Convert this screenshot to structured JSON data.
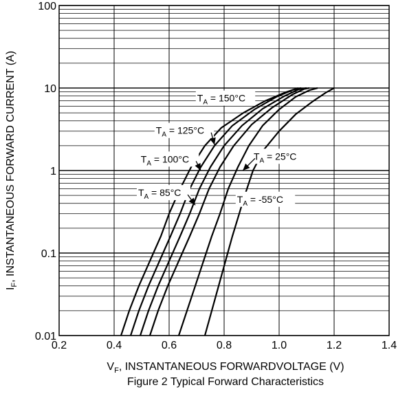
{
  "chart_data": {
    "type": "line",
    "y_scale": "log",
    "grid": true,
    "xlim": [
      0.2,
      1.4
    ],
    "ylim": [
      0.01,
      100
    ],
    "x_ticks": [
      {
        "v": 0.2,
        "label": "0.2"
      },
      {
        "v": 0.4,
        "label": "0.4"
      },
      {
        "v": 0.6,
        "label": "0.6"
      },
      {
        "v": 0.8,
        "label": "0.8"
      },
      {
        "v": 1.0,
        "label": "1.0"
      },
      {
        "v": 1.2,
        "label": "1.2"
      },
      {
        "v": 1.4,
        "label": "1.4"
      }
    ],
    "y_ticks": [
      {
        "v": 0.01,
        "label": "0.01"
      },
      {
        "v": 0.1,
        "label": "0.1"
      },
      {
        "v": 1,
        "label": "1"
      },
      {
        "v": 10,
        "label": "10"
      },
      {
        "v": 100,
        "label": "100"
      }
    ],
    "xlabel": {
      "pre": "V",
      "sub": "F",
      "post": ", INSTANTANEOUS FORWARDVOLTAGE (V)"
    },
    "ylabel": {
      "pre": "I",
      "sub": "F",
      "post": ", INSTANTANEOUS FORWARD CURRENT (A)"
    },
    "caption": "Figure 2 Typical Forward Characteristics",
    "series": [
      {
        "label_pre": "T",
        "label_sub": "A",
        "label_post": " = 150°C",
        "label_at": [
          0.805,
          7.4
        ],
        "arrow_to": [
          0.78,
          2.8
        ],
        "arrow": false,
        "points": [
          [
            0.425,
            0.01
          ],
          [
            0.455,
            0.02
          ],
          [
            0.49,
            0.04
          ],
          [
            0.53,
            0.08
          ],
          [
            0.57,
            0.16
          ],
          [
            0.6,
            0.3
          ],
          [
            0.64,
            0.6
          ],
          [
            0.68,
            1.1
          ],
          [
            0.73,
            2.0
          ],
          [
            0.79,
            3.3
          ],
          [
            0.87,
            5.0
          ],
          [
            0.95,
            7.0
          ],
          [
            1.02,
            8.8
          ],
          [
            1.07,
            10
          ]
        ]
      },
      {
        "label_pre": "T",
        "label_sub": "A",
        "label_post": " = 125°C",
        "label_at": [
          0.655,
          3.0
        ],
        "arrow_to": [
          0.765,
          2.05
        ],
        "arrow": true,
        "points": [
          [
            0.46,
            0.01
          ],
          [
            0.49,
            0.02
          ],
          [
            0.525,
            0.04
          ],
          [
            0.565,
            0.08
          ],
          [
            0.605,
            0.16
          ],
          [
            0.64,
            0.3
          ],
          [
            0.675,
            0.6
          ],
          [
            0.715,
            1.1
          ],
          [
            0.765,
            2.0
          ],
          [
            0.83,
            3.5
          ],
          [
            0.91,
            5.5
          ],
          [
            0.99,
            7.8
          ],
          [
            1.05,
            9.5
          ],
          [
            1.08,
            10
          ]
        ]
      },
      {
        "label_pre": "T",
        "label_sub": "A",
        "label_post": " = 100°C",
        "label_at": [
          0.6,
          1.35
        ],
        "arrow_to": [
          0.715,
          1.0
        ],
        "arrow": true,
        "points": [
          [
            0.495,
            0.01
          ],
          [
            0.525,
            0.02
          ],
          [
            0.56,
            0.04
          ],
          [
            0.6,
            0.08
          ],
          [
            0.64,
            0.16
          ],
          [
            0.675,
            0.3
          ],
          [
            0.71,
            0.6
          ],
          [
            0.75,
            1.1
          ],
          [
            0.8,
            2.0
          ],
          [
            0.865,
            3.5
          ],
          [
            0.94,
            5.6
          ],
          [
            1.02,
            8.0
          ],
          [
            1.07,
            9.6
          ],
          [
            1.1,
            10
          ]
        ]
      },
      {
        "label_pre": "T",
        "label_sub": "A",
        "label_post": " = 85°C",
        "label_at": [
          0.58,
          0.53
        ],
        "arrow_to": [
          0.695,
          0.38
        ],
        "arrow": true,
        "points": [
          [
            0.53,
            0.01
          ],
          [
            0.56,
            0.02
          ],
          [
            0.595,
            0.04
          ],
          [
            0.635,
            0.08
          ],
          [
            0.675,
            0.16
          ],
          [
            0.71,
            0.3
          ],
          [
            0.745,
            0.6
          ],
          [
            0.785,
            1.1
          ],
          [
            0.835,
            2.0
          ],
          [
            0.9,
            3.6
          ],
          [
            0.975,
            5.8
          ],
          [
            1.05,
            8.4
          ],
          [
            1.09,
            9.7
          ],
          [
            1.11,
            10
          ]
        ]
      },
      {
        "label_pre": "T",
        "label_sub": "A",
        "label_post": " = 25°C",
        "label_at": [
          1.0,
          1.46
        ],
        "arrow_to": [
          0.868,
          1.0
        ],
        "arrow": true,
        "points": [
          [
            0.635,
            0.01
          ],
          [
            0.665,
            0.02
          ],
          [
            0.695,
            0.04
          ],
          [
            0.725,
            0.08
          ],
          [
            0.755,
            0.16
          ],
          [
            0.785,
            0.3
          ],
          [
            0.815,
            0.6
          ],
          [
            0.85,
            1.1
          ],
          [
            0.89,
            2.0
          ],
          [
            0.94,
            3.5
          ],
          [
            1.0,
            5.5
          ],
          [
            1.06,
            7.8
          ],
          [
            1.11,
            9.4
          ],
          [
            1.14,
            10
          ]
        ]
      },
      {
        "label_pre": "T",
        "label_sub": "A",
        "label_post": " = -55°C",
        "label_at": [
          0.95,
          0.44
        ],
        "arrow_to": [
          0.88,
          0.44
        ],
        "arrow": false,
        "points": [
          [
            0.73,
            0.01
          ],
          [
            0.755,
            0.02
          ],
          [
            0.78,
            0.04
          ],
          [
            0.805,
            0.08
          ],
          [
            0.83,
            0.16
          ],
          [
            0.855,
            0.3
          ],
          [
            0.875,
            0.5
          ],
          [
            0.905,
            1.0
          ],
          [
            0.945,
            1.8
          ],
          [
            1.0,
            3.0
          ],
          [
            1.06,
            4.8
          ],
          [
            1.12,
            6.8
          ],
          [
            1.17,
            8.8
          ],
          [
            1.2,
            10
          ]
        ]
      }
    ]
  }
}
